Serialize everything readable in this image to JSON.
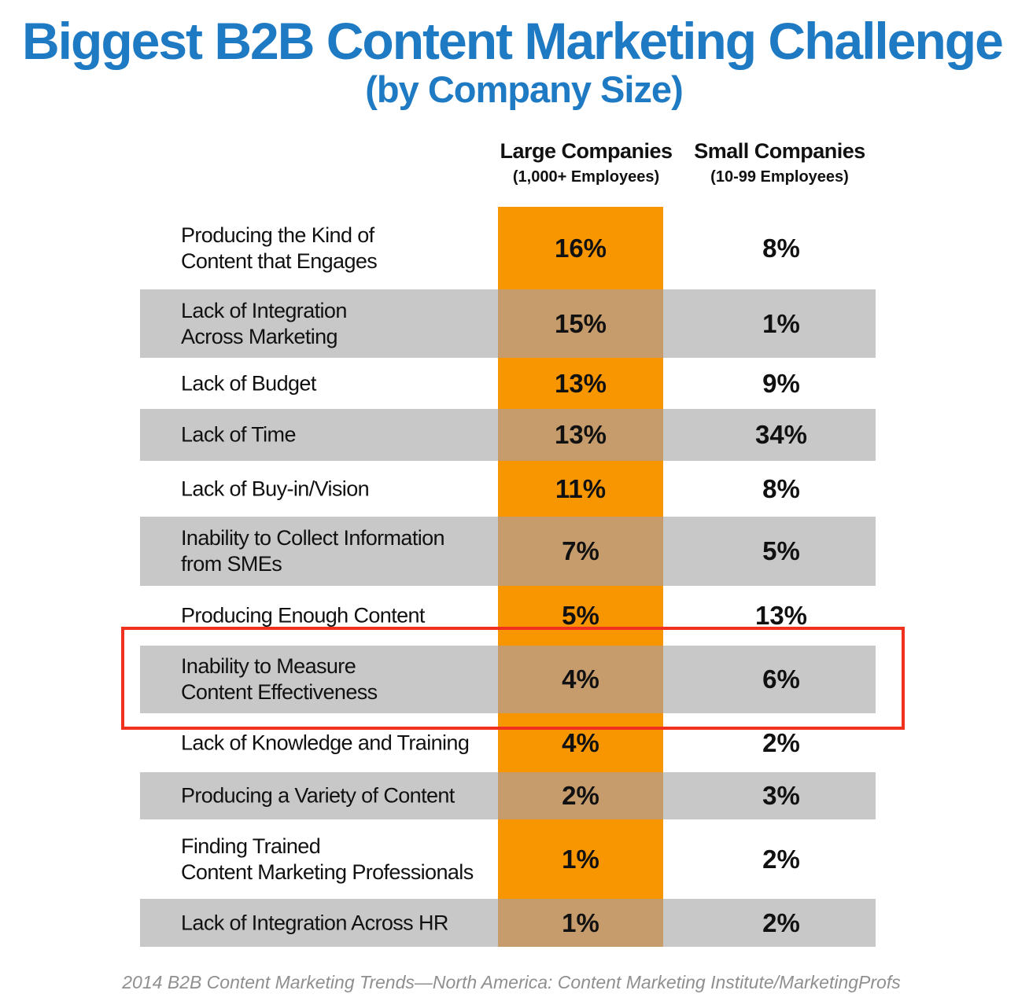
{
  "chart_data": {
    "type": "table",
    "title": "Biggest B2B Content Marketing Challenge",
    "subtitle": "(by Company Size)",
    "columns": [
      {
        "name": "Large Companies",
        "sub": "(1,000+ Employees)",
        "color": "#f79600"
      },
      {
        "name": "Small Companies",
        "sub": "(10-99 Employees)"
      }
    ],
    "rows": [
      {
        "label": "Producing the Kind of\nContent that Engages",
        "large": "16%",
        "small": "8%"
      },
      {
        "label": "Lack of Integration\nAcross Marketing",
        "large": "15%",
        "small": "1%"
      },
      {
        "label": "Lack of Budget",
        "large": "13%",
        "small": "9%"
      },
      {
        "label": "Lack of Time",
        "large": "13%",
        "small": "34%"
      },
      {
        "label": "Lack of Buy-in/Vision",
        "large": "11%",
        "small": "8%"
      },
      {
        "label": "Inability to Collect Information\nfrom SMEs",
        "large": "7%",
        "small": "5%"
      },
      {
        "label": "Producing Enough Content",
        "large": "5%",
        "small": "13%"
      },
      {
        "label": "Inability to Measure\nContent Effectiveness",
        "large": "4%",
        "small": "6%"
      },
      {
        "label": "Lack of Knowledge and Training",
        "large": "4%",
        "small": "2%"
      },
      {
        "label": "Producing a Variety of Content",
        "large": "2%",
        "small": "3%"
      },
      {
        "label": "Finding Trained\nContent Marketing Professionals",
        "large": "1%",
        "small": "2%"
      },
      {
        "label": "Lack of Integration Across HR",
        "large": "1%",
        "small": "2%"
      }
    ],
    "highlighted_row": "Inability to Measure\nContent Effectiveness",
    "highlight_color": "#f0311e",
    "source": "2014 B2B Content Marketing Trends—North America: Content Marketing Institute/MarketingProfs"
  },
  "colors": {
    "title": "#1f7ac4",
    "row_shade": "#c8c8c8",
    "large_column": "#f79600",
    "large_column_shaded": "#c79c6c"
  }
}
